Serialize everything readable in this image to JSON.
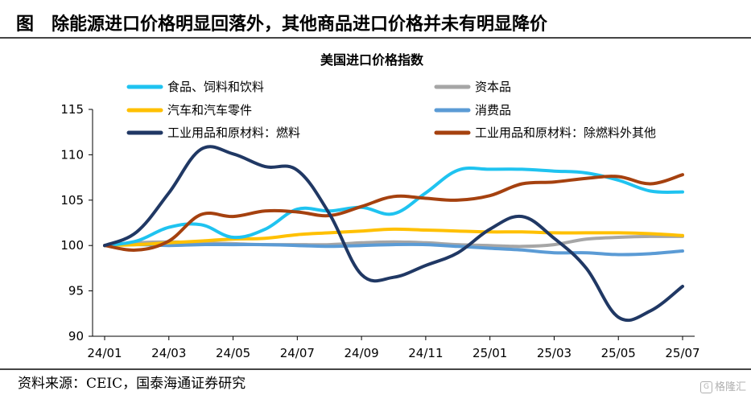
{
  "figure_title": "图　除能源进口价格明显回落外，其他商品进口价格并未有明显降价",
  "source": "资料来源：CEIC，国泰海通证券研究",
  "watermark": "格隆汇",
  "colors": {
    "food": "#1fc3f0",
    "capital": "#a6a6a6",
    "auto": "#ffc000",
    "consumer": "#5b9bd5",
    "fuels": "#203864",
    "industrial_ex_fuel": "#a5410f"
  },
  "chart_data": {
    "type": "line",
    "title": "美国进口价格指数",
    "xlabel": "",
    "ylabel": "",
    "ylim": [
      90,
      115
    ],
    "yticks": [
      90,
      95,
      100,
      105,
      110,
      115
    ],
    "categories": [
      "24/01",
      "24/02",
      "24/03",
      "24/04",
      "24/05",
      "24/06",
      "24/07",
      "24/08",
      "24/09",
      "24/10",
      "24/11",
      "24/12",
      "25/01",
      "25/02",
      "25/03",
      "25/04",
      "25/05",
      "25/06",
      "25/07"
    ],
    "xtick_labels": [
      "24/01",
      "24/03",
      "24/05",
      "24/07",
      "24/09",
      "24/11",
      "25/01",
      "25/03",
      "25/05",
      "25/07"
    ],
    "legend_position": "top",
    "series": [
      {
        "key": "food",
        "name": "食品、饲料和饮料",
        "values": [
          100,
          100.5,
          102.0,
          102.3,
          100.9,
          101.8,
          104.0,
          103.8,
          104.2,
          103.5,
          105.8,
          108.3,
          108.4,
          108.4,
          108.2,
          108.0,
          107.2,
          106.0,
          105.9
        ]
      },
      {
        "key": "capital",
        "name": "资本品",
        "values": [
          100,
          100.3,
          100.4,
          100.3,
          100.2,
          100.1,
          100.1,
          100.1,
          100.3,
          100.4,
          100.3,
          100.1,
          100.0,
          99.9,
          100.1,
          100.7,
          100.9,
          101.0,
          101.0
        ]
      },
      {
        "key": "auto",
        "name": "汽车和汽车零件",
        "values": [
          100,
          100.1,
          100.3,
          100.5,
          100.7,
          100.8,
          101.2,
          101.4,
          101.6,
          101.8,
          101.7,
          101.6,
          101.5,
          101.5,
          101.4,
          101.4,
          101.4,
          101.3,
          101.1
        ]
      },
      {
        "key": "consumer",
        "name": "消费品",
        "values": [
          100,
          100.1,
          100.0,
          100.1,
          100.1,
          100.1,
          100.0,
          99.9,
          100.0,
          100.1,
          100.1,
          99.9,
          99.7,
          99.5,
          99.2,
          99.2,
          99.0,
          99.1,
          99.4
        ]
      },
      {
        "key": "fuels",
        "name": "工业用品和原材料：燃料",
        "values": [
          100,
          101.5,
          105.8,
          110.6,
          110.1,
          108.7,
          108.3,
          103.5,
          96.8,
          96.5,
          97.8,
          99.2,
          101.8,
          103.2,
          100.8,
          97.5,
          92.1,
          92.8,
          95.5
        ]
      },
      {
        "key": "industrial_ex_fuel",
        "name": "工业用品和原材料：除燃料外其他",
        "values": [
          100,
          99.5,
          100.5,
          103.4,
          103.2,
          103.8,
          103.7,
          103.3,
          104.3,
          105.4,
          105.2,
          105.0,
          105.5,
          106.8,
          107.0,
          107.4,
          107.6,
          106.8,
          107.8
        ]
      }
    ]
  }
}
